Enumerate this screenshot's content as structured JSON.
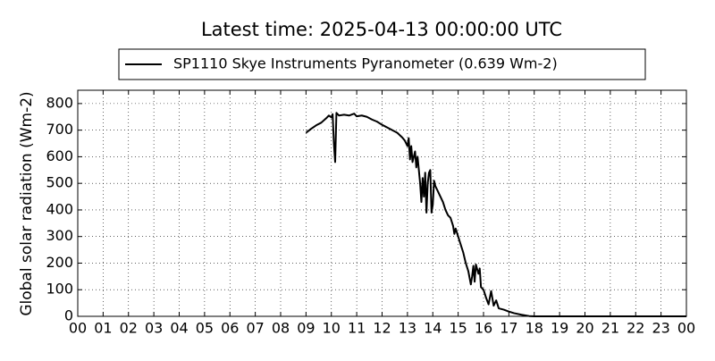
{
  "chart_data": {
    "type": "line",
    "title": "Latest time: 2025-04-13 00:00:00 UTC",
    "y_label": "Global solar radiation (Wm-2)",
    "series": [
      {
        "name": "SP1110 Skye Instruments Pyranometer (0.639 Wm-2)",
        "color": "#000000",
        "x": [
          9.0,
          9.2,
          9.4,
          9.6,
          9.8,
          9.9,
          10.0,
          10.05,
          10.1,
          10.15,
          10.2,
          10.3,
          10.5,
          10.7,
          10.9,
          11.0,
          11.2,
          11.4,
          11.6,
          11.8,
          12.0,
          12.2,
          12.4,
          12.6,
          12.8,
          12.9,
          13.0,
          13.05,
          13.1,
          13.15,
          13.2,
          13.3,
          13.35,
          13.4,
          13.5,
          13.55,
          13.6,
          13.65,
          13.7,
          13.75,
          13.8,
          13.85,
          13.9,
          13.95,
          14.0,
          14.05,
          14.1,
          14.2,
          14.3,
          14.4,
          14.5,
          14.6,
          14.7,
          14.8,
          14.85,
          14.9,
          15.0,
          15.1,
          15.2,
          15.3,
          15.4,
          15.5,
          15.55,
          15.6,
          15.65,
          15.7,
          15.8,
          15.85,
          15.9,
          16.0,
          16.1,
          16.2,
          16.3,
          16.4,
          16.5,
          16.6,
          16.8,
          17.0,
          17.2,
          17.5,
          17.8,
          18.0,
          24.0
        ],
        "values": [
          690,
          705,
          718,
          728,
          745,
          755,
          748,
          760,
          650,
          580,
          765,
          755,
          758,
          755,
          762,
          752,
          755,
          750,
          740,
          732,
          720,
          710,
          700,
          690,
          672,
          660,
          640,
          670,
          590,
          640,
          580,
          620,
          560,
          600,
          500,
          430,
          520,
          450,
          540,
          390,
          500,
          540,
          550,
          390,
          420,
          510,
          490,
          470,
          450,
          430,
          400,
          380,
          370,
          340,
          310,
          330,
          300,
          270,
          240,
          200,
          170,
          120,
          150,
          190,
          130,
          195,
          160,
          180,
          110,
          100,
          70,
          45,
          95,
          40,
          60,
          30,
          25,
          18,
          12,
          6,
          1,
          0,
          0
        ]
      }
    ],
    "xlim": [
      0,
      24
    ],
    "xticks": [
      {
        "value": 0,
        "label": "00"
      },
      {
        "value": 1,
        "label": "01"
      },
      {
        "value": 2,
        "label": "02"
      },
      {
        "value": 3,
        "label": "03"
      },
      {
        "value": 4,
        "label": "04"
      },
      {
        "value": 5,
        "label": "05"
      },
      {
        "value": 6,
        "label": "06"
      },
      {
        "value": 7,
        "label": "07"
      },
      {
        "value": 8,
        "label": "08"
      },
      {
        "value": 9,
        "label": "09"
      },
      10,
      11,
      12,
      13,
      14,
      15,
      16,
      17,
      18,
      19,
      20,
      21,
      22,
      23,
      {
        "value": 24,
        "label": "00"
      }
    ],
    "ylim": [
      0,
      850
    ],
    "yticks": [
      0,
      100,
      200,
      300,
      400,
      500,
      600,
      700,
      800
    ],
    "grid": true
  }
}
